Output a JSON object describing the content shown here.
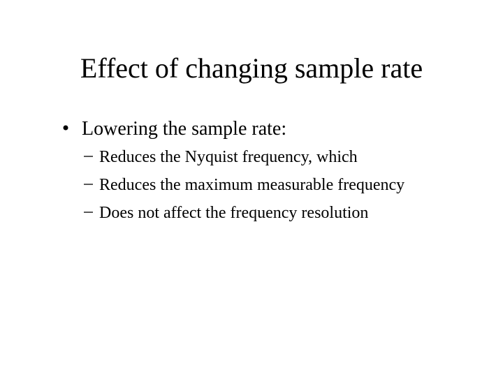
{
  "slide": {
    "title": "Effect of changing sample rate",
    "bullets": [
      {
        "text": "Lowering the sample rate:",
        "subitems": [
          "Reduces the Nyquist frequency, which",
          "Reduces the maximum measurable frequency",
          "Does not affect the frequency resolution"
        ]
      }
    ]
  }
}
